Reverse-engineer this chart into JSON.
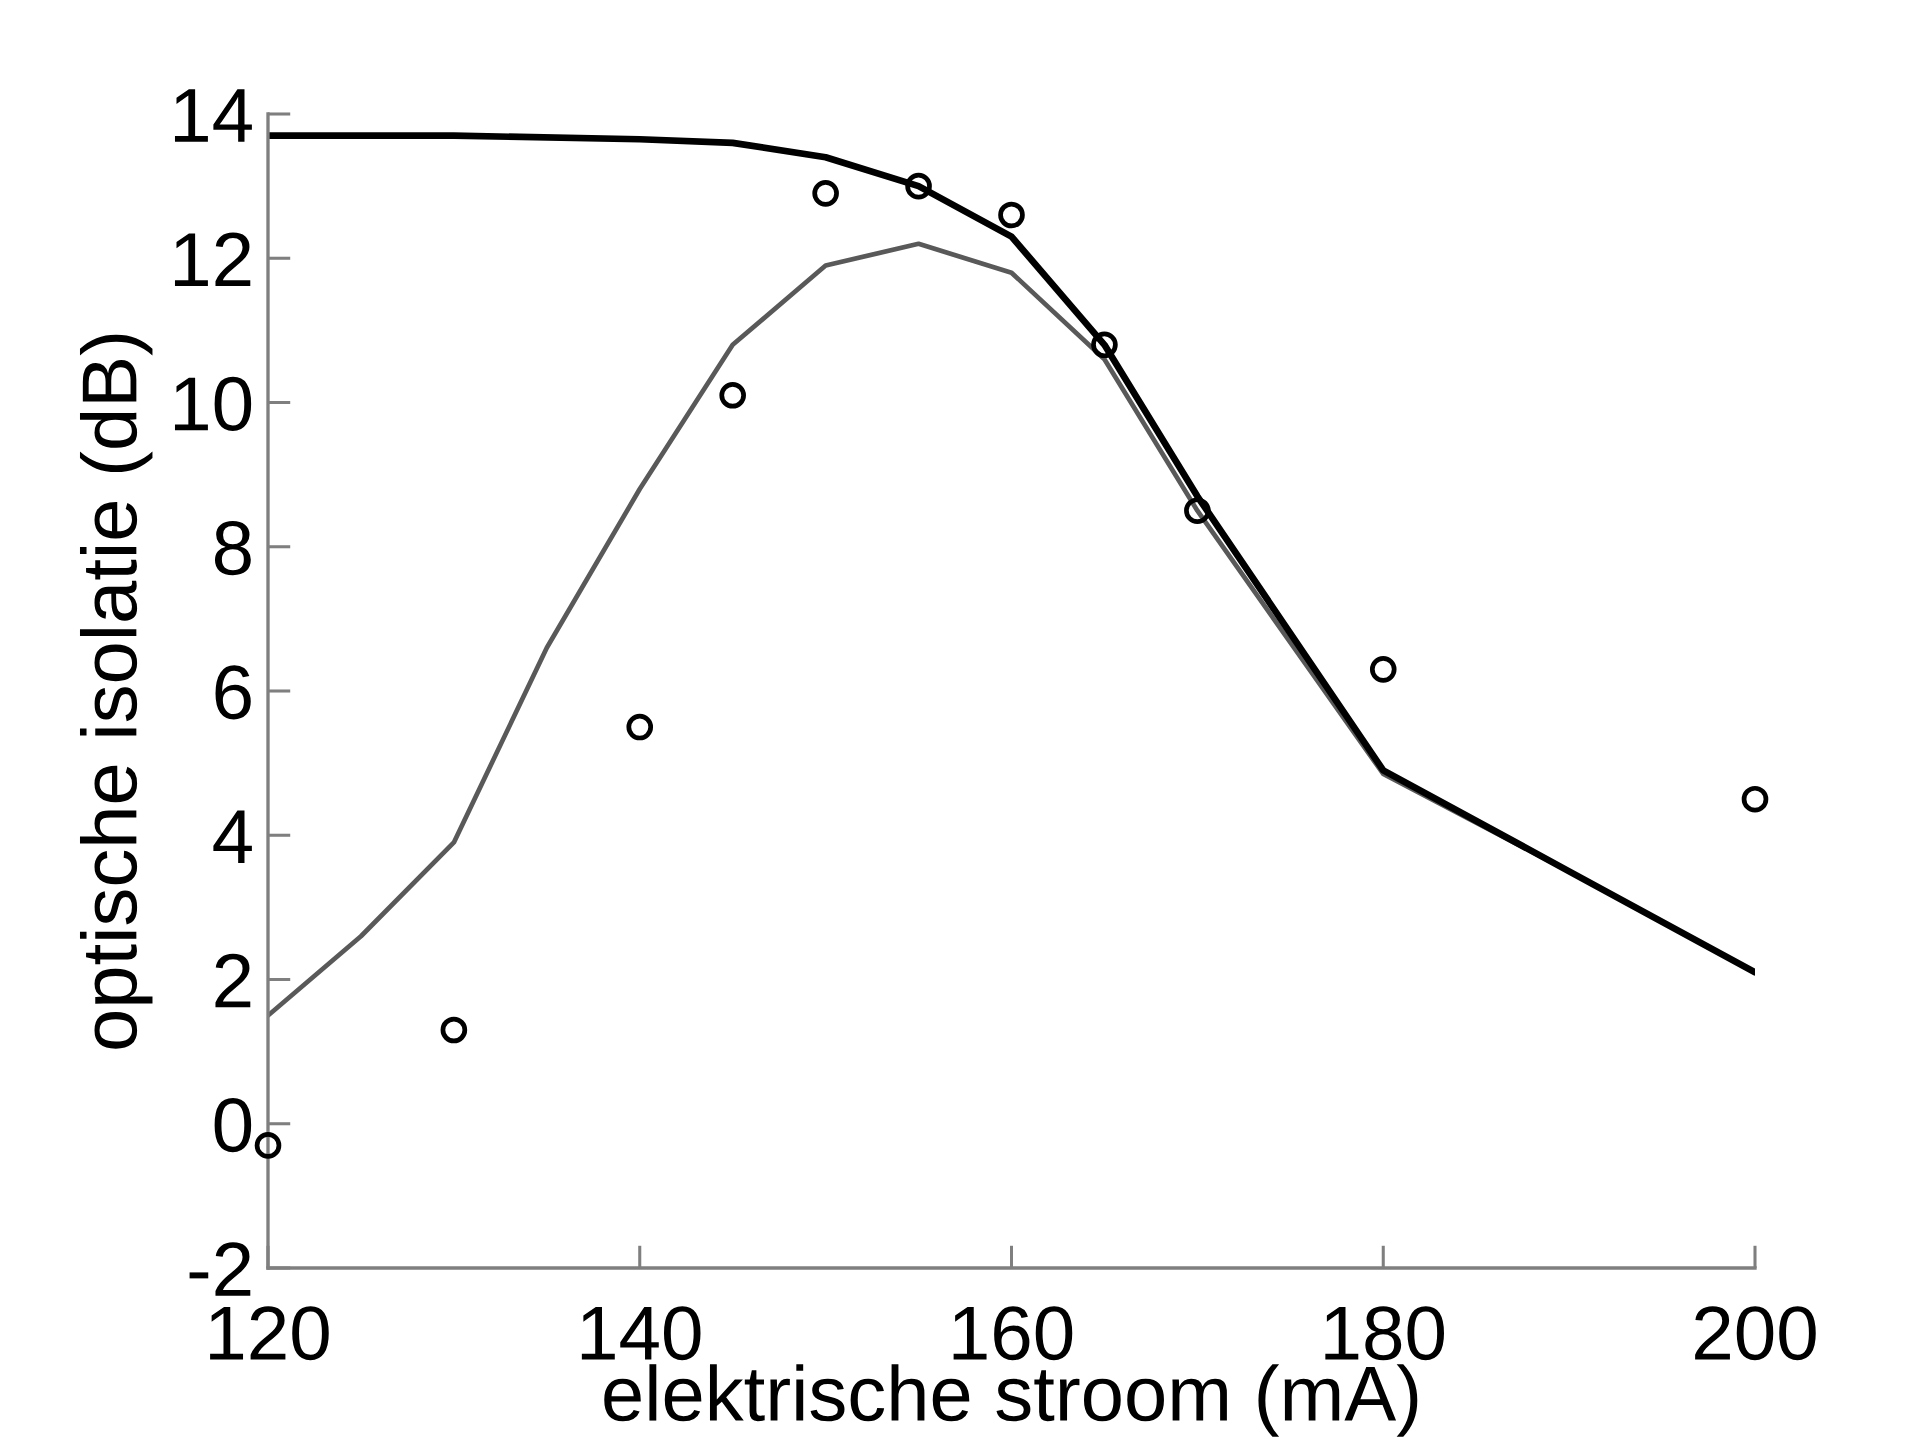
{
  "chart_data": {
    "type": "line",
    "xlabel": "elektrische stroom (mA)",
    "ylabel": "optische isolatie (dB)",
    "xlim": [
      120,
      200
    ],
    "ylim": [
      -2,
      14
    ],
    "xticks": [
      120,
      140,
      160,
      180,
      200
    ],
    "yticks": [
      -2,
      0,
      2,
      4,
      6,
      8,
      10,
      12,
      14
    ],
    "series": [
      {
        "color": "#595959",
        "x": [
          120,
          125,
          130,
          135,
          140,
          145,
          150,
          155,
          160,
          165,
          170,
          180,
          190,
          200
        ],
        "values": [
          1.5,
          2.6,
          3.9,
          6.6,
          8.8,
          10.8,
          11.9,
          12.2,
          11.8,
          10.6,
          8.5,
          4.85,
          3.5,
          2.1
        ]
      },
      {
        "color": "#000000",
        "x": [
          120,
          130,
          140,
          145,
          150,
          155,
          160,
          165,
          170,
          180,
          190,
          200
        ],
        "values": [
          13.7,
          13.7,
          13.65,
          13.6,
          13.4,
          13.0,
          12.3,
          10.8,
          8.7,
          4.9,
          3.5,
          2.1
        ]
      },
      {
        "type": "scatter",
        "color": "#000000",
        "marker": "circle",
        "x": [
          120,
          130,
          140,
          145,
          150,
          155,
          160,
          165,
          170,
          180,
          200
        ],
        "values": [
          -0.3,
          1.3,
          5.5,
          10.1,
          12.9,
          13.0,
          12.6,
          10.8,
          8.5,
          6.3,
          4.5
        ]
      }
    ]
  }
}
